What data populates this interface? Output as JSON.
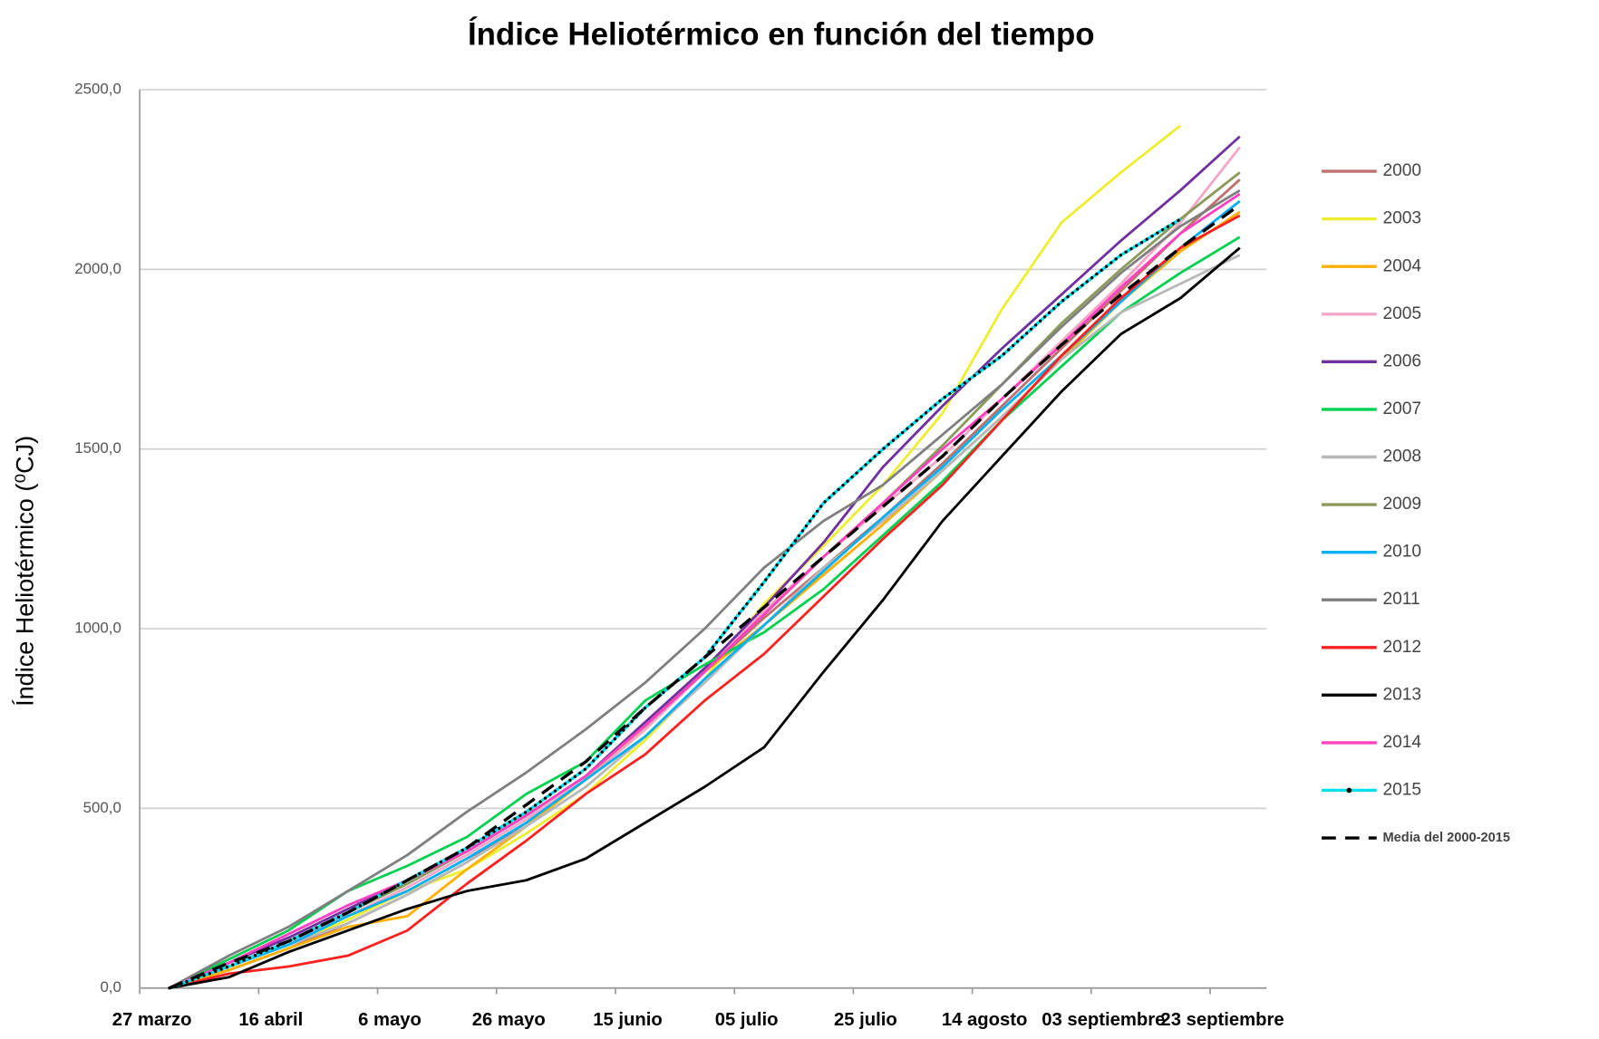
{
  "chart_data": {
    "type": "line",
    "title": "Índice Heliotérmico en función del tiempo",
    "y_label": "Índice Heliotérmico (⁰CJ)",
    "x": [
      5,
      15,
      25,
      35,
      45,
      55,
      65,
      75,
      85,
      95,
      105,
      115,
      125,
      135,
      145,
      155,
      165,
      175,
      185
    ],
    "xlim": [
      0,
      190
    ],
    "xticks": [
      {
        "value": 0,
        "label": "27 marzo"
      },
      {
        "value": 20,
        "label": "16 abril"
      },
      {
        "value": 40,
        "label": "6 mayo"
      },
      {
        "value": 60,
        "label": "26 mayo"
      },
      {
        "value": 80,
        "label": "15 junio"
      },
      {
        "value": 100,
        "label": "05 julio"
      },
      {
        "value": 120,
        "label": "25 julio"
      },
      {
        "value": 140,
        "label": "14 agosto"
      },
      {
        "value": 160,
        "label": "03 septiembre"
      },
      {
        "value": 180,
        "label": "23 septiembre"
      }
    ],
    "ylim": [
      0,
      2500
    ],
    "yticks": [
      {
        "value": 0,
        "label": "0,0"
      },
      {
        "value": 500,
        "label": "500,0"
      },
      {
        "value": 1000,
        "label": "1000,0"
      },
      {
        "value": 1500,
        "label": "1500,0"
      },
      {
        "value": 2000,
        "label": "2000,0"
      },
      {
        "value": 2500,
        "label": "2500,0"
      }
    ],
    "grid": true,
    "legend": "right",
    "series": [
      {
        "name": "2000",
        "color": "#c0706f",
        "values": [
          0,
          50,
          110,
          180,
          260,
          350,
          460,
          580,
          720,
          880,
          1030,
          1170,
          1310,
          1460,
          1620,
          1780,
          1940,
          2100,
          2250
        ]
      },
      {
        "name": "2003",
        "color": "#eeee30",
        "values": [
          0,
          60,
          120,
          190,
          270,
          330,
          430,
          540,
          690,
          860,
          1070,
          1230,
          1400,
          1600,
          1890,
          2130,
          2270,
          2400,
          null
        ]
      },
      {
        "name": "2004",
        "color": "#ffb000",
        "values": [
          0,
          50,
          110,
          170,
          200,
          330,
          450,
          580,
          730,
          880,
          1010,
          1150,
          1290,
          1440,
          1590,
          1750,
          1910,
          2050,
          2160
        ]
      },
      {
        "name": "2005",
        "color": "#f4a6c8",
        "values": [
          0,
          60,
          130,
          200,
          280,
          370,
          470,
          580,
          720,
          880,
          1050,
          1200,
          1340,
          1480,
          1640,
          1800,
          1960,
          2130,
          2340
        ]
      },
      {
        "name": "2006",
        "color": "#7030a0",
        "values": [
          0,
          70,
          140,
          220,
          300,
          380,
          480,
          590,
          740,
          890,
          1060,
          1240,
          1450,
          1620,
          1780,
          1930,
          2080,
          2220,
          2370
        ]
      },
      {
        "name": "2007",
        "color": "#00d050",
        "values": [
          0,
          80,
          160,
          270,
          340,
          420,
          540,
          630,
          800,
          900,
          990,
          1110,
          1260,
          1410,
          1580,
          1730,
          1880,
          1990,
          2090
        ]
      },
      {
        "name": "2008",
        "color": "#b8b8b8",
        "values": [
          0,
          60,
          120,
          180,
          260,
          350,
          450,
          560,
          700,
          850,
          1010,
          1170,
          1300,
          1440,
          1590,
          1750,
          1880,
          1960,
          2040
        ]
      },
      {
        "name": "2009",
        "color": "#8a9a5b",
        "values": [
          0,
          60,
          130,
          210,
          290,
          380,
          480,
          590,
          730,
          880,
          1040,
          1200,
          1350,
          1510,
          1680,
          1850,
          2000,
          2140,
          2270
        ]
      },
      {
        "name": "2010",
        "color": "#00b0f0",
        "values": [
          0,
          60,
          120,
          200,
          270,
          360,
          460,
          580,
          700,
          860,
          1010,
          1160,
          1310,
          1450,
          1610,
          1760,
          1910,
          2060,
          2190
        ]
      },
      {
        "name": "2011",
        "color": "#7f7f7f",
        "values": [
          0,
          90,
          170,
          270,
          370,
          490,
          600,
          720,
          850,
          1000,
          1170,
          1300,
          1400,
          1540,
          1680,
          1840,
          1990,
          2120,
          2220
        ]
      },
      {
        "name": "2012",
        "color": "#ff2020",
        "values": [
          0,
          40,
          60,
          90,
          160,
          290,
          410,
          540,
          650,
          800,
          930,
          1090,
          1250,
          1400,
          1580,
          1760,
          1920,
          2060,
          2150
        ]
      },
      {
        "name": "2013",
        "color": "#000000",
        "values": [
          0,
          30,
          100,
          160,
          220,
          270,
          300,
          360,
          460,
          560,
          670,
          880,
          1080,
          1300,
          1480,
          1660,
          1820,
          1920,
          2060
        ]
      },
      {
        "name": "2014",
        "color": "#ff40c0",
        "values": [
          0,
          70,
          150,
          230,
          300,
          380,
          480,
          590,
          730,
          880,
          1040,
          1200,
          1350,
          1500,
          1640,
          1790,
          1950,
          2100,
          2210
        ]
      },
      {
        "name": "2015",
        "color": "#00e0f0",
        "dash": "dotted",
        "values": [
          0,
          60,
          130,
          210,
          300,
          390,
          490,
          610,
          780,
          920,
          1130,
          1350,
          1500,
          1640,
          1760,
          1910,
          2040,
          2140,
          null
        ]
      },
      {
        "name": "Media del 2000-2015",
        "color": "#000000",
        "dash": "dashed",
        "values": [
          0,
          70,
          130,
          210,
          300,
          390,
          510,
          630,
          780,
          920,
          1060,
          1200,
          1340,
          1480,
          1640,
          1790,
          1930,
          2060,
          2180
        ]
      }
    ]
  }
}
